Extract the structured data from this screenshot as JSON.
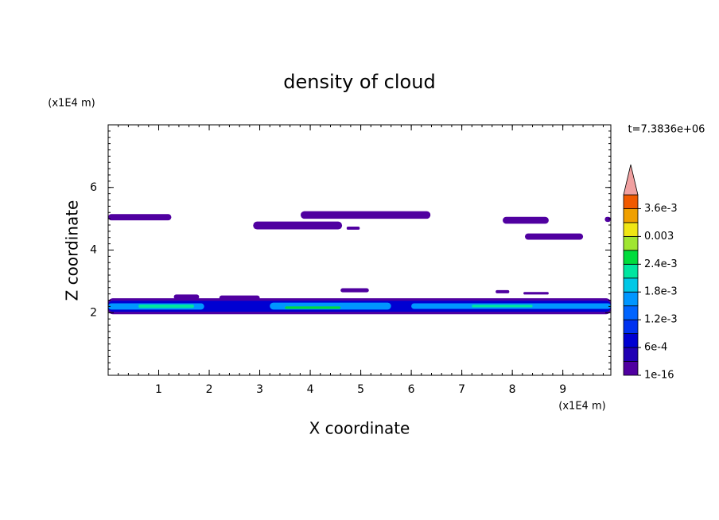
{
  "chart_data": {
    "type": "contour",
    "title": "density of cloud",
    "x_label": "X coordinate",
    "y_label": "Z coordinate",
    "x_unit": "(x1E4 m)",
    "y_unit": "(x1E4 m)",
    "time_label": "t=7.3836e+06",
    "xlim": [
      0,
      9.95
    ],
    "ylim": [
      0,
      8
    ],
    "xticks": [
      1,
      2,
      3,
      4,
      5,
      6,
      7,
      8,
      9
    ],
    "yticks": [
      2,
      4,
      6
    ],
    "colorbar": {
      "clim": [
        1e-16,
        0.0039
      ],
      "levels": [
        1e-16,
        0.0003,
        0.0006,
        0.0009,
        0.0012,
        0.0015,
        0.0018,
        0.0021,
        0.0024,
        0.0027,
        0.003,
        0.0033,
        0.0036
      ],
      "colors": [
        "#5000a0",
        "#2000b4",
        "#0000d2",
        "#0032f0",
        "#0064ff",
        "#0096ff",
        "#00c8e6",
        "#00e6a0",
        "#00dc3c",
        "#a0e632",
        "#f0e614",
        "#f0a000",
        "#f05a00",
        "#e60000"
      ],
      "extend_color": "#f0a0a0",
      "ticks": [
        {
          "value": 1e-16,
          "label": "1e-16"
        },
        {
          "value": 0.0006,
          "label": "6e-4"
        },
        {
          "value": 0.0012,
          "label": "1.2e-3"
        },
        {
          "value": 0.0018,
          "label": "1.8e-3"
        },
        {
          "value": 0.0024,
          "label": "2.4e-3"
        },
        {
          "value": 0.003,
          "label": "0.003"
        },
        {
          "value": 0.0036,
          "label": "3.6e-3"
        }
      ]
    },
    "patches": [
      {
        "x": [
          0,
          1.25
        ],
        "z": [
          4.95,
          5.15
        ],
        "level": 0
      },
      {
        "x": [
          2.87,
          4.63
        ],
        "z": [
          4.66,
          4.91
        ],
        "level": 0
      },
      {
        "x": [
          3.81,
          6.38
        ],
        "z": [
          5.0,
          5.24
        ],
        "level": 0
      },
      {
        "x": [
          4.72,
          4.98
        ],
        "z": [
          4.65,
          4.75
        ],
        "level": 0
      },
      {
        "x": [
          7.81,
          8.72
        ],
        "z": [
          4.84,
          5.06
        ],
        "level": 0
      },
      {
        "x": [
          8.25,
          9.4
        ],
        "z": [
          4.33,
          4.53
        ],
        "level": 0
      },
      {
        "x": [
          9.83,
          9.95
        ],
        "z": [
          4.9,
          5.06
        ],
        "level": 0
      },
      {
        "x": [
          1.3,
          1.8
        ],
        "z": [
          2.43,
          2.58
        ],
        "level": 0
      },
      {
        "x": [
          4.6,
          5.16
        ],
        "z": [
          2.65,
          2.78
        ],
        "level": 0
      },
      {
        "x": [
          7.67,
          7.94
        ],
        "z": [
          2.62,
          2.72
        ],
        "level": 0
      },
      {
        "x": [
          8.22,
          8.72
        ],
        "z": [
          2.58,
          2.66
        ],
        "level": 0
      },
      {
        "x": [
          2.2,
          3.0
        ],
        "z": [
          2.4,
          2.55
        ],
        "level": 0
      },
      {
        "x": [
          0,
          9.95
        ],
        "z": [
          1.95,
          2.46
        ],
        "level": 0
      },
      {
        "x": [
          0,
          9.95
        ],
        "z": [
          2.03,
          2.38
        ],
        "level": 2
      },
      {
        "x": [
          0,
          1.9
        ],
        "z": [
          2.1,
          2.3
        ],
        "level": 5
      },
      {
        "x": [
          3.2,
          5.6
        ],
        "z": [
          2.1,
          2.32
        ],
        "level": 5
      },
      {
        "x": [
          6.0,
          9.95
        ],
        "z": [
          2.12,
          2.3
        ],
        "level": 5
      },
      {
        "x": [
          0.6,
          1.7
        ],
        "z": [
          2.15,
          2.26
        ],
        "level": 7
      },
      {
        "x": [
          3.5,
          4.6
        ],
        "z": [
          2.12,
          2.2
        ],
        "level": 8
      },
      {
        "x": [
          7.2,
          8.4
        ],
        "z": [
          2.17,
          2.25
        ],
        "level": 7
      }
    ]
  }
}
